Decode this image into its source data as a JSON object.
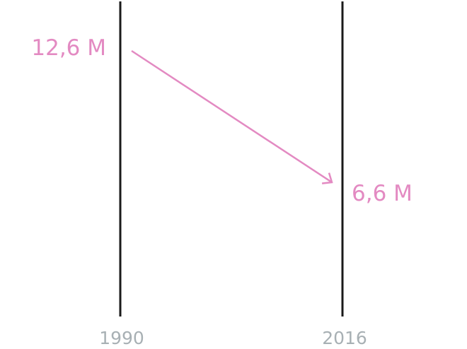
{
  "chart_data": {
    "type": "line",
    "style": "slope-arrow",
    "categories": [
      "1990",
      "2016"
    ],
    "series": [
      {
        "values": [
          12.6,
          6.6
        ]
      }
    ],
    "data_labels": [
      "12,6 M",
      "6,6 M"
    ],
    "colors": {
      "series": "#e38ac2",
      "axis": "#1a1a1a",
      "tick_label": "#a8b0b4"
    },
    "grid": false
  }
}
